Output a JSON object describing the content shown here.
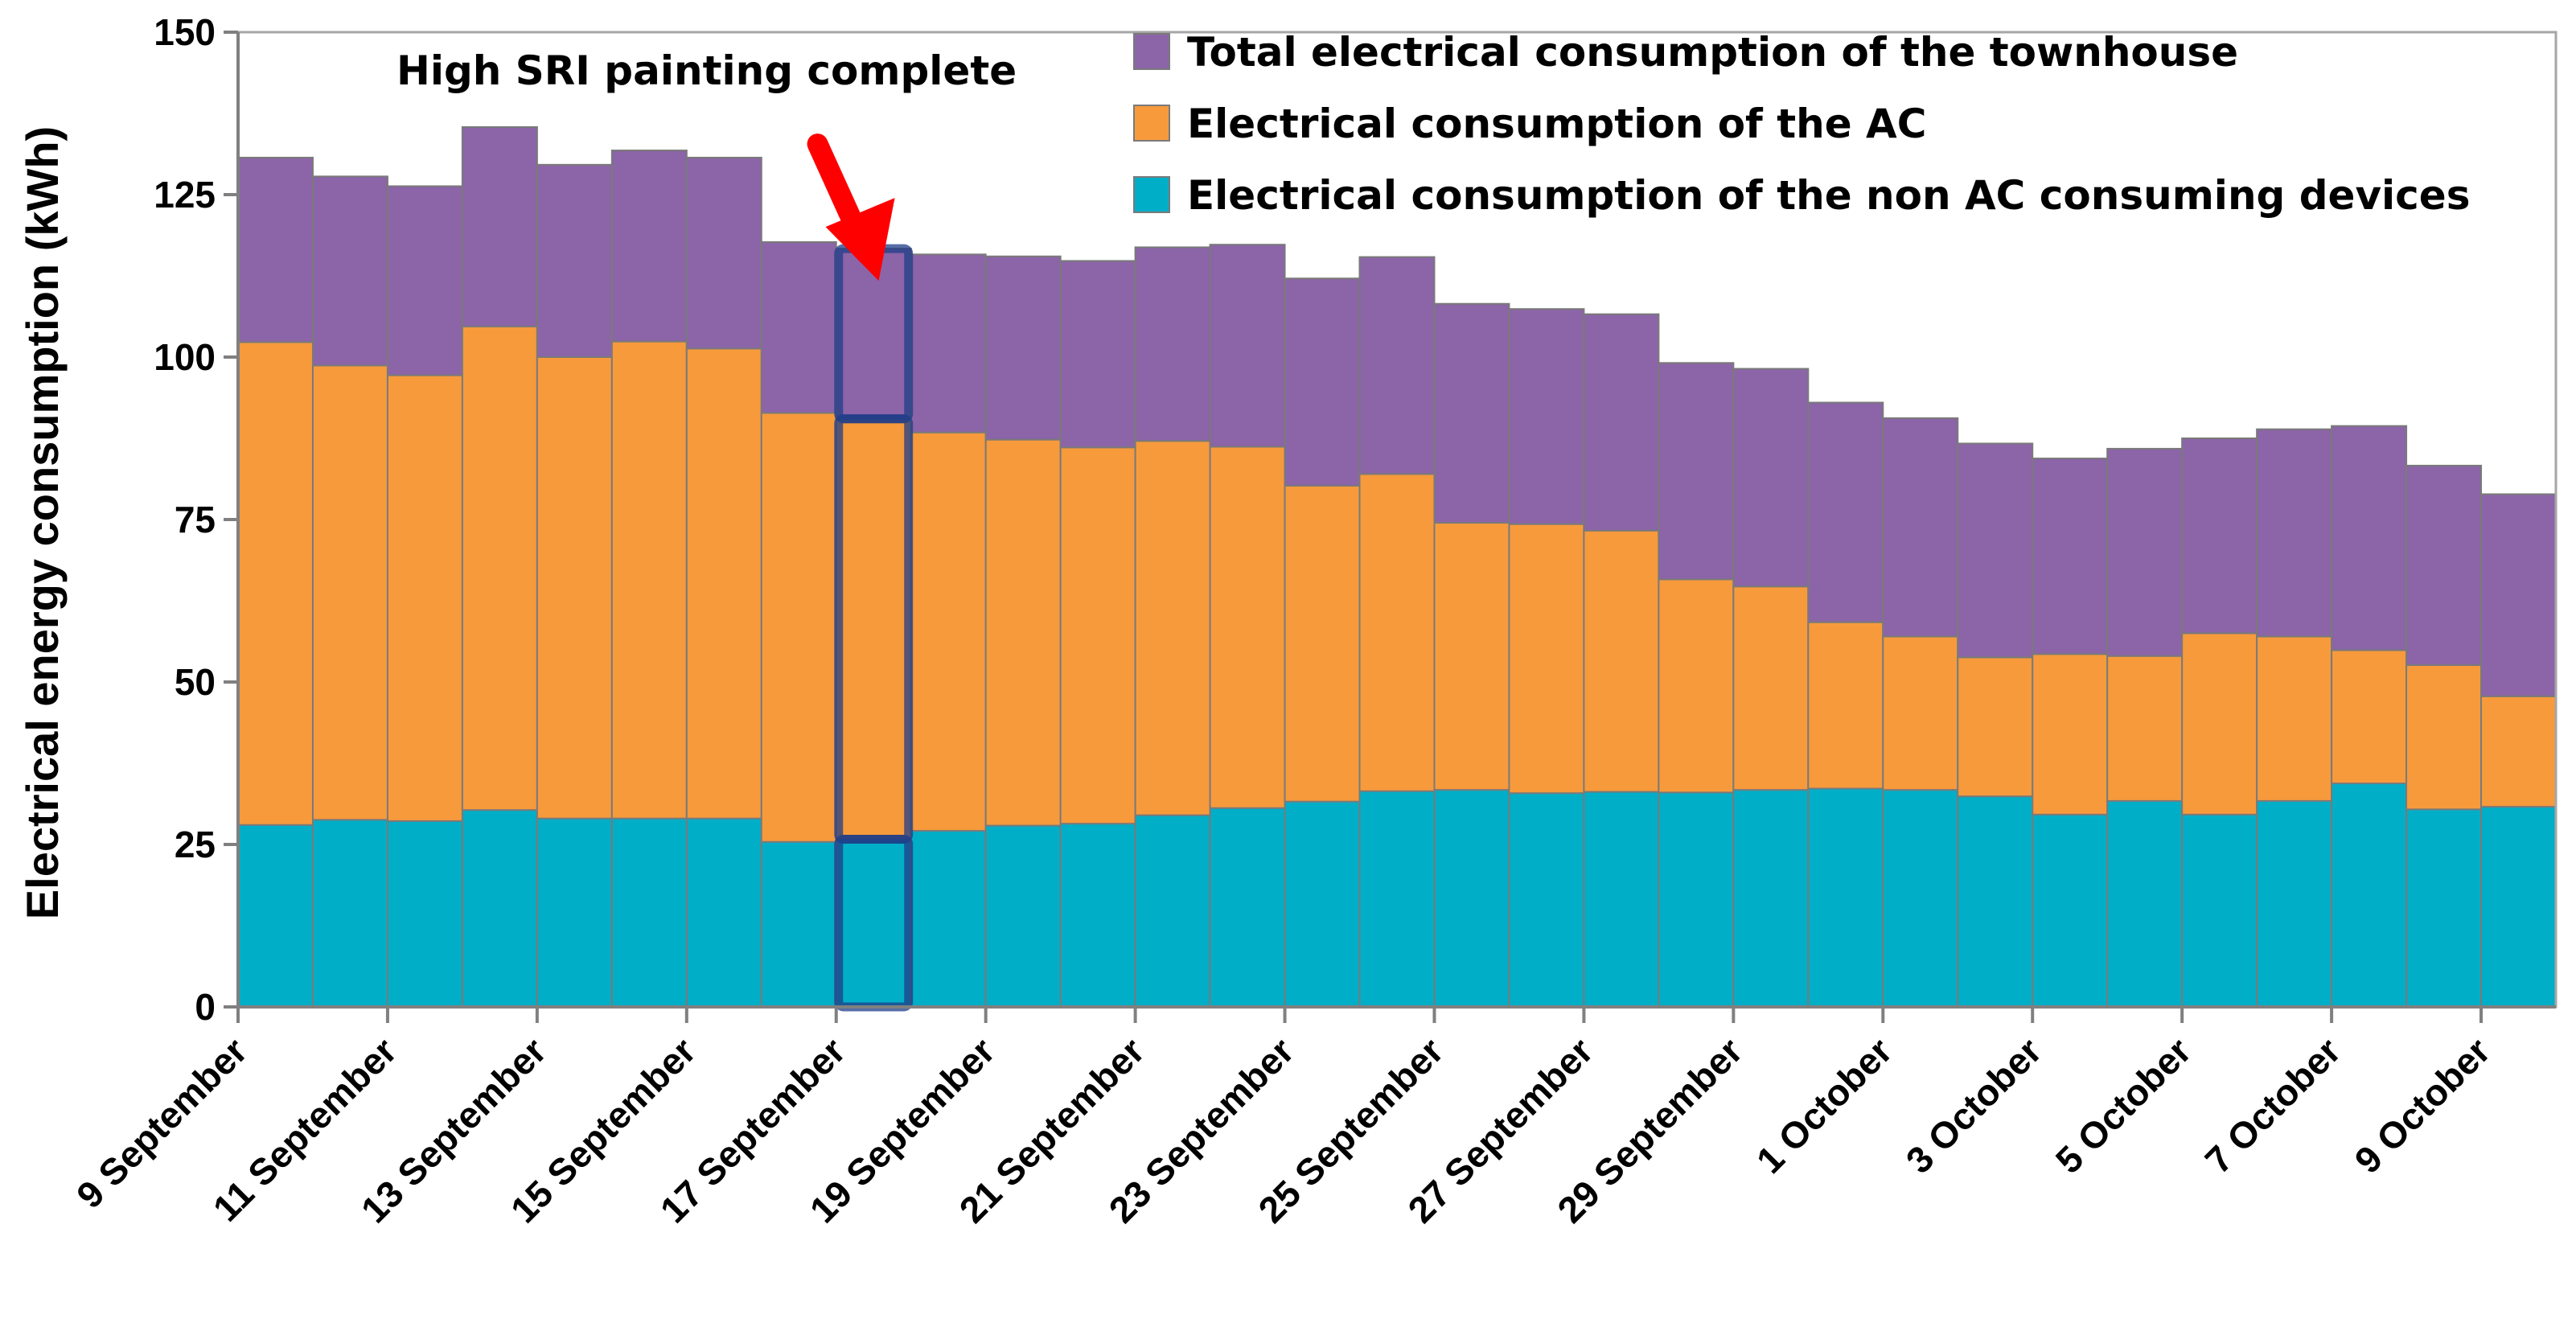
{
  "chart_data": {
    "type": "bar",
    "stacked": true,
    "title": "",
    "xlabel": "",
    "ylabel": "Electrical energy consumption (kWh)",
    "ylim": [
      0,
      150
    ],
    "yticks": [
      0,
      25,
      50,
      75,
      100,
      125,
      150
    ],
    "grid": false,
    "legend_position": "top-right",
    "colors": {
      "non_ac": "#00AEC7",
      "ac": "#F79A3C",
      "other": "#8C64A8",
      "highlight": "#1F3C88",
      "arrow": "#FF0000",
      "bar_edge": "#7A7A7A"
    },
    "categories": [
      "9 September",
      "10 September",
      "11 September",
      "12 September",
      "13 September",
      "14 September",
      "15 September",
      "16 September",
      "17 September",
      "18 September",
      "19 September",
      "20 September",
      "21 September",
      "22 September",
      "23 September",
      "24 September",
      "25 September",
      "26 September",
      "27 September",
      "28 September",
      "29 September",
      "30 September",
      "1 October",
      "2 October",
      "3 October",
      "4 October",
      "5 October",
      "6 October",
      "7 October",
      "8 October",
      "9 October"
    ],
    "tick_labels": [
      "9 September",
      "11 September",
      "13 September",
      "15 September",
      "17 September",
      "19 September",
      "21 September",
      "23 September",
      "25 September",
      "27 September",
      "29 September",
      "1 October",
      "3 October",
      "5 October",
      "7 October",
      "9 October"
    ],
    "series": [
      {
        "key": "non_ac",
        "name": "Electrical consumption of the non AC consuming devices",
        "values": [
          28,
          28.8,
          28.6,
          30.3,
          29,
          29,
          29,
          25.4,
          25.8,
          27.1,
          27.9,
          28.2,
          29.5,
          30.6,
          31.6,
          33.2,
          33.4,
          32.9,
          33.1,
          33,
          33.4,
          33.6,
          33.4,
          32.4,
          29.6,
          31.7,
          29.6,
          31.7,
          34.4,
          30.4,
          30.8
        ]
      },
      {
        "key": "ac",
        "name": "Electrical consumption of the AC",
        "values": [
          74.3,
          69.9,
          68.6,
          74.4,
          71,
          73.4,
          72.3,
          66,
          64.7,
          61.3,
          59.4,
          57.9,
          57.6,
          55.6,
          48.6,
          48.8,
          41.1,
          41.4,
          40.2,
          32.8,
          31.3,
          25.6,
          23.6,
          21.4,
          24.7,
          22.3,
          27.9,
          25.3,
          20.5,
          22.2,
          17
        ]
      },
      {
        "key": "other",
        "name": "Total electrical consumption of the townhouse",
        "values": [
          28.4,
          29.1,
          29.1,
          30.7,
          29.6,
          29.4,
          29.4,
          26.3,
          26.2,
          27.4,
          28.2,
          28.7,
          29.8,
          31.1,
          31.9,
          33.4,
          33.7,
          33.1,
          33.3,
          33.3,
          33.5,
          33.8,
          33.6,
          32.9,
          30.1,
          31.9,
          30,
          31.9,
          34.5,
          30.7,
          31.1
        ]
      }
    ],
    "totals": [
      130.7,
      127.8,
      126.3,
      135.4,
      129.6,
      131.8,
      130.7,
      117.7,
      116.7,
      115.8,
      115.5,
      114.8,
      116.9,
      117.3,
      112.1,
      115.4,
      108.2,
      107.4,
      106.6,
      99.1,
      98.2,
      93,
      90.6,
      86.7,
      84.4,
      85.9,
      87.5,
      88.9,
      89.4,
      83.3,
      78.9
    ],
    "legend": [
      {
        "key": "other",
        "label": "Total electrical consumption of the townhouse"
      },
      {
        "key": "ac",
        "label": "Electrical consumption of the AC"
      },
      {
        "key": "non_ac",
        "label": "Electrical consumption of the non AC consuming devices"
      }
    ],
    "annotation": {
      "text": "High SRI painting complete",
      "highlight_category": "17 September"
    }
  }
}
